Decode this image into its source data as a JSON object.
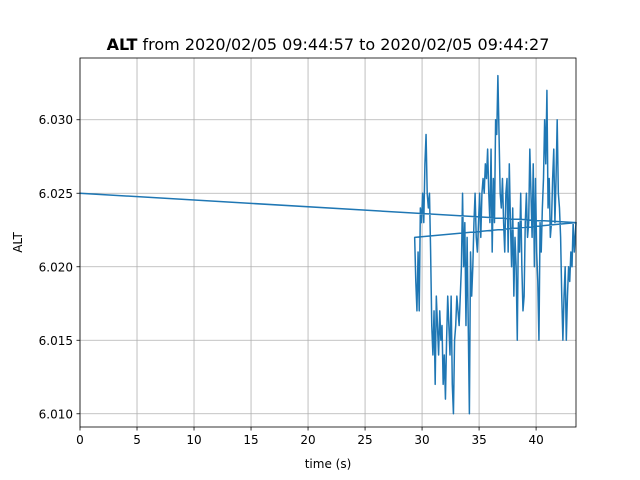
{
  "chart_data": {
    "type": "line",
    "title_bold": "ALT",
    "title_rest": " from 2020/02/05 09:44:57 to 2020/02/05 09:44:27",
    "xlabel": "time (s)",
    "ylabel": "ALT",
    "xlim": [
      0,
      43.5
    ],
    "ylim": [
      6.0091,
      6.0342
    ],
    "xticks": [
      0,
      5,
      10,
      15,
      20,
      25,
      30,
      35,
      40
    ],
    "yticks": [
      6.01,
      6.015,
      6.02,
      6.025,
      6.03
    ],
    "ytick_labels": [
      "6.010",
      "6.015",
      "6.020",
      "6.025",
      "6.030"
    ],
    "grid": true,
    "line_color": "#1f77b4",
    "series": [
      {
        "x": [
          0,
          43.5,
          29.35,
          29.45,
          29.55,
          29.65,
          29.75,
          29.85,
          29.95,
          30.05,
          30.15,
          30.25,
          30.35,
          30.45,
          30.55,
          30.65,
          30.75,
          30.85,
          30.95,
          31.05,
          31.15,
          31.25,
          31.35,
          31.45,
          31.55,
          31.65,
          31.75,
          31.85,
          31.95,
          32.05,
          32.15,
          32.25,
          32.35,
          32.45,
          32.55,
          32.65,
          32.75,
          32.85,
          32.95,
          33.05,
          33.15,
          33.25,
          33.35,
          33.45,
          33.55,
          33.65,
          33.75,
          33.85,
          33.95,
          34.05,
          34.15,
          34.25,
          34.35,
          34.45,
          34.55,
          34.65,
          34.75,
          34.85,
          34.95,
          35.05,
          35.15,
          35.25,
          35.35,
          35.45,
          35.55,
          35.65,
          35.75,
          35.85,
          35.95,
          36.05,
          36.15,
          36.25,
          36.35,
          36.45,
          36.55,
          36.65,
          36.75,
          36.85,
          36.95,
          37.05,
          37.15,
          37.25,
          37.35,
          37.45,
          37.55,
          37.65,
          37.75,
          37.85,
          37.95,
          38.05,
          38.15,
          38.25,
          38.35,
          38.45,
          38.55,
          38.65,
          38.75,
          38.85,
          38.95,
          39.05,
          39.15,
          39.25,
          39.35,
          39.45,
          39.55,
          39.65,
          39.75,
          39.85,
          39.95,
          40.05,
          40.15,
          40.25,
          40.35,
          40.45,
          40.55,
          40.65,
          40.75,
          40.85,
          40.95,
          41.05,
          41.15,
          41.25,
          41.35,
          41.45,
          41.55,
          41.65,
          41.75,
          41.85,
          41.95,
          42.05,
          42.15,
          42.25,
          42.35,
          42.45,
          42.55,
          42.65,
          42.75,
          42.85,
          42.95,
          43.05,
          43.15,
          43.25,
          43.35,
          43.5
        ],
        "y": [
          6.025,
          6.023,
          6.022,
          6.019,
          6.017,
          6.021,
          6.017,
          6.024,
          6.023,
          6.025,
          6.023,
          6.027,
          6.029,
          6.025,
          6.024,
          6.025,
          6.021,
          6.016,
          6.014,
          6.017,
          6.012,
          6.018,
          6.016,
          6.014,
          6.017,
          6.015,
          6.016,
          6.012,
          6.014,
          6.011,
          6.015,
          6.018,
          6.016,
          6.014,
          6.018,
          6.012,
          6.01,
          6.015,
          6.016,
          6.018,
          6.017,
          6.016,
          6.018,
          6.02,
          6.025,
          6.02,
          6.023,
          6.016,
          6.022,
          6.016,
          6.01,
          6.021,
          6.018,
          6.02,
          6.023,
          6.025,
          6.022,
          6.021,
          6.023,
          6.025,
          6.022,
          6.025,
          6.026,
          6.025,
          6.027,
          6.026,
          6.028,
          6.025,
          6.023,
          6.028,
          6.021,
          6.026,
          6.023,
          6.03,
          6.029,
          6.033,
          6.029,
          6.025,
          6.024,
          6.026,
          6.023,
          6.021,
          6.025,
          6.026,
          6.021,
          6.027,
          6.023,
          6.02,
          6.024,
          6.018,
          6.022,
          6.02,
          6.015,
          6.023,
          6.021,
          6.025,
          6.02,
          6.017,
          6.018,
          6.023,
          6.025,
          6.022,
          6.023,
          6.028,
          6.025,
          6.022,
          6.027,
          6.02,
          6.026,
          6.021,
          6.019,
          6.015,
          6.023,
          6.021,
          6.024,
          6.026,
          6.03,
          6.027,
          6.032,
          6.024,
          6.026,
          6.022,
          6.023,
          6.026,
          6.028,
          6.023,
          6.026,
          6.03,
          6.025,
          6.024,
          6.022,
          6.018,
          6.015,
          6.018,
          6.02,
          6.015,
          6.018,
          6.02,
          6.019,
          6.021,
          6.02,
          6.023,
          6.021,
          6.023
        ]
      }
    ]
  }
}
